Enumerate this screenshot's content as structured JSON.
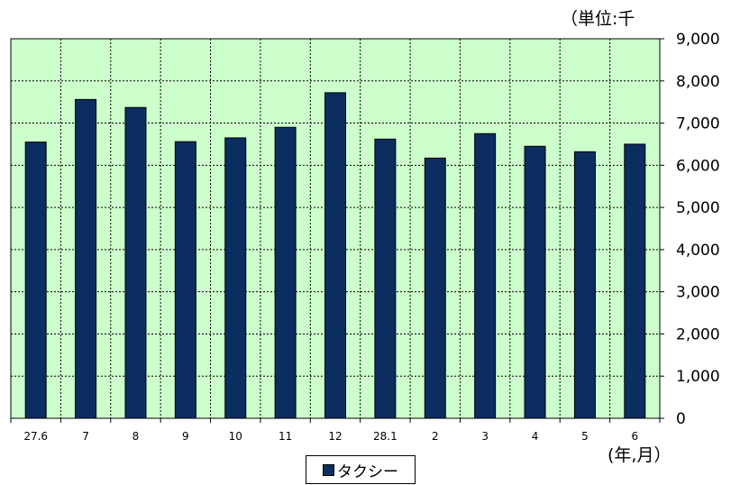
{
  "unit_label": "（単位:千",
  "x_unit_label": "(年,月）",
  "chart_data": {
    "type": "bar",
    "categories": [
      "27.6",
      "7",
      "8",
      "9",
      "10",
      "11",
      "12",
      "28.1",
      "2",
      "3",
      "4",
      "5",
      "6"
    ],
    "series": [
      {
        "name": "タクシー",
        "values": [
          6550,
          7560,
          7370,
          6560,
          6650,
          6900,
          7720,
          6620,
          6170,
          6750,
          6450,
          6320,
          6500
        ]
      }
    ],
    "ylim": [
      0,
      9000
    ],
    "yticks": [
      "0",
      "1,000",
      "2,000",
      "3,000",
      "4,000",
      "5,000",
      "6,000",
      "7,000",
      "8,000",
      "9,000"
    ],
    "grid": true,
    "legend_position": "bottom",
    "colors": {
      "bar": "#0b2d5f",
      "plot_background": "#ccffcc"
    }
  }
}
